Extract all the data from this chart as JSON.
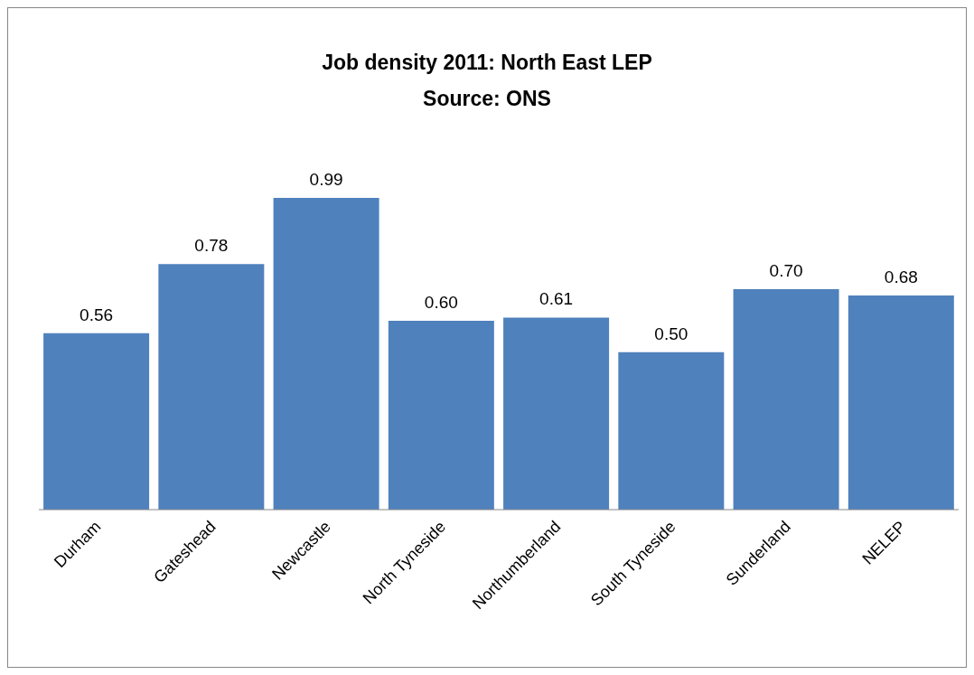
{
  "chart_data": {
    "type": "bar",
    "title": "Job density 2011: North East LEP",
    "subtitle": "Source: ONS",
    "categories": [
      "Durham",
      "Gateshead",
      "Newcastle",
      "North Tyneside",
      "Northumberland",
      "South Tyneside",
      "Sunderland",
      "NELEP"
    ],
    "values": [
      0.56,
      0.78,
      0.99,
      0.6,
      0.61,
      0.5,
      0.7,
      0.68
    ],
    "value_labels": [
      "0.56",
      "0.78",
      "0.99",
      "0.60",
      "0.61",
      "0.50",
      "0.70",
      "0.68"
    ],
    "color": "#4f81bd",
    "grid": false,
    "legend": false
  }
}
